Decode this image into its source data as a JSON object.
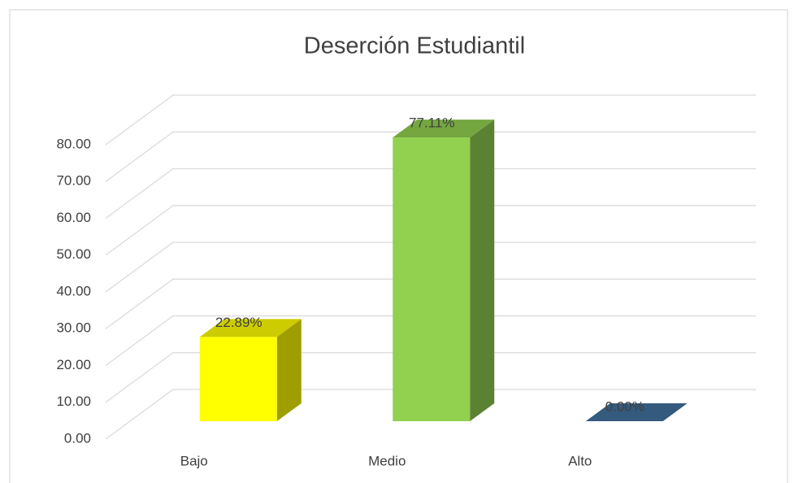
{
  "chart_data": {
    "type": "bar3d",
    "title": "Deserción Estudiantil",
    "categories": [
      "Bajo",
      "Medio",
      "Alto"
    ],
    "values": [
      22.89,
      77.11,
      0
    ],
    "value_labels": [
      "22.89%",
      "77.11%",
      "0.00%"
    ],
    "colors": [
      "#ffff00",
      "#92d050",
      "#41719c"
    ],
    "ylim": [
      0,
      80
    ],
    "yticks": [
      {
        "value": 0,
        "label": "0.00"
      },
      {
        "value": 10,
        "label": "10.00"
      },
      {
        "value": 20,
        "label": "20.00"
      },
      {
        "value": 30,
        "label": "30.00"
      },
      {
        "value": 40,
        "label": "40.00"
      },
      {
        "value": 50,
        "label": "50.00"
      },
      {
        "value": 60,
        "label": "60.00"
      },
      {
        "value": 70,
        "label": "70.00"
      },
      {
        "value": 80,
        "label": "80.00"
      }
    ],
    "grid": true
  }
}
